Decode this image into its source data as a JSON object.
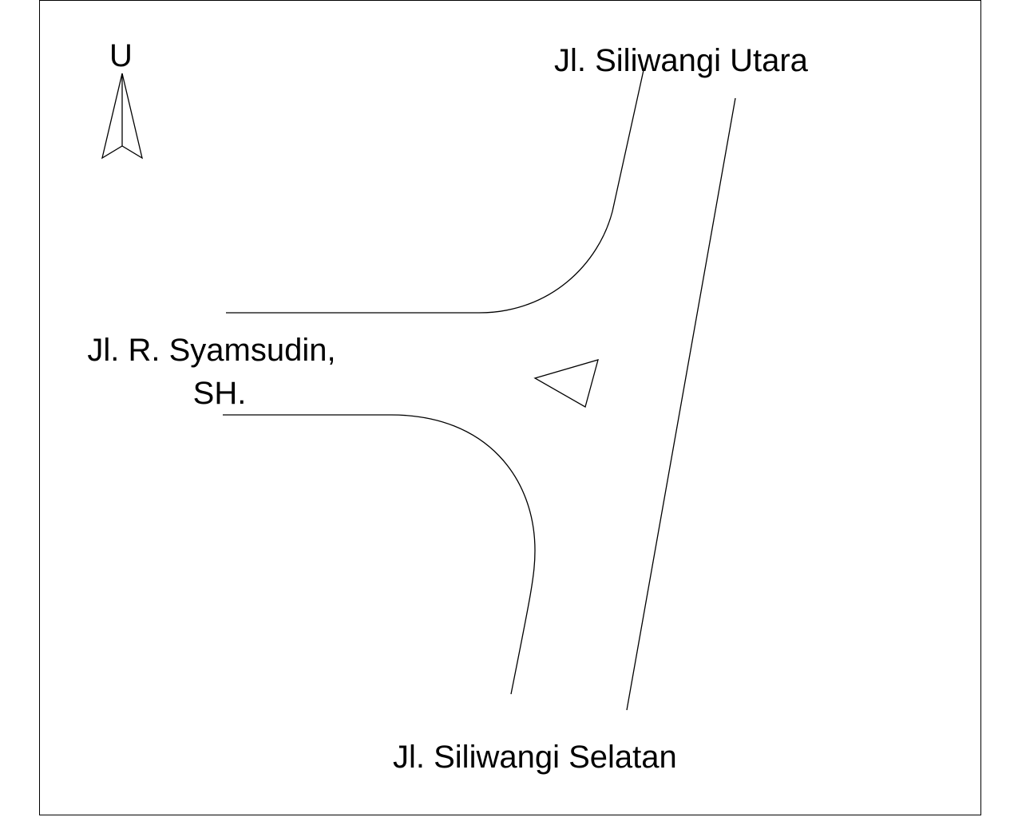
{
  "map": {
    "north_label": "U",
    "streets": {
      "north": "Jl. Siliwangi Utara",
      "west_line1": "Jl. R. Syamsudin,",
      "west_line2": "SH.",
      "south": "Jl. Siliwangi Selatan"
    },
    "line_color": "#000000",
    "background": "#ffffff"
  }
}
